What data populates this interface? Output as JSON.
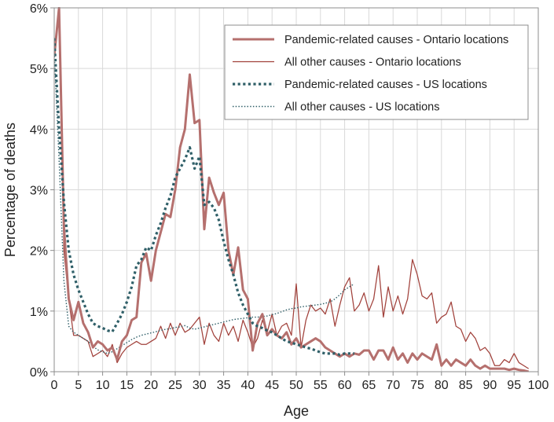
{
  "chart_data": {
    "type": "line",
    "title": "",
    "xlabel": "Age",
    "ylabel": "Percentage of deaths",
    "xlim": [
      0,
      100
    ],
    "ylim": [
      0,
      6
    ],
    "x_ticks": [
      0,
      5,
      10,
      15,
      20,
      25,
      30,
      35,
      40,
      45,
      50,
      55,
      60,
      65,
      70,
      75,
      80,
      85,
      90,
      95,
      100
    ],
    "x_tick_labels": [
      "0",
      "5",
      "10",
      "15",
      "20",
      "25",
      "30",
      "35",
      "40",
      "45",
      "50",
      "55",
      "60",
      "65",
      "70",
      "75",
      "80",
      "85",
      "90",
      "95",
      "100"
    ],
    "y_ticks": [
      0,
      1,
      2,
      3,
      4,
      5,
      6
    ],
    "y_tick_labels": [
      "0%",
      "1%",
      "2%",
      "3%",
      "4%",
      "5%",
      "6%"
    ],
    "grid": true,
    "legend_position": "top-right",
    "colors": {
      "ontario": "#b5706e",
      "ontario_thin": "#a1413b",
      "us": "#2f5f68"
    },
    "series": [
      {
        "name": "Pandemic-related causes - Ontario locations",
        "style": "solid-thick",
        "color": "#b5706e",
        "x": [
          0,
          1,
          2,
          3,
          4,
          5,
          6,
          7,
          8,
          9,
          10,
          11,
          12,
          13,
          14,
          15,
          16,
          17,
          18,
          19,
          20,
          21,
          22,
          23,
          24,
          25,
          26,
          27,
          28,
          29,
          30,
          31,
          32,
          33,
          34,
          35,
          36,
          37,
          38,
          39,
          40,
          41,
          42,
          43,
          44,
          45,
          46,
          47,
          48,
          49,
          50,
          51,
          52,
          53,
          54,
          55,
          56,
          57,
          58,
          59,
          60,
          61,
          62,
          63,
          64,
          65,
          66,
          67,
          68,
          69,
          70,
          71,
          72,
          73,
          74,
          75,
          76,
          77,
          78,
          79,
          80,
          81,
          82,
          83,
          84,
          85,
          86,
          87,
          88,
          89,
          90,
          91,
          92,
          93,
          94,
          95,
          96,
          97,
          98
        ],
        "values": [
          5.2,
          6.0,
          2.4,
          1.2,
          0.85,
          1.15,
          0.8,
          0.65,
          0.4,
          0.5,
          0.45,
          0.35,
          0.4,
          0.2,
          0.5,
          0.6,
          0.85,
          0.9,
          1.8,
          1.95,
          1.5,
          2.0,
          2.3,
          2.6,
          2.55,
          3.0,
          3.7,
          4.0,
          4.9,
          4.1,
          4.15,
          2.35,
          3.2,
          2.95,
          2.75,
          2.95,
          2.0,
          1.6,
          2.05,
          1.35,
          1.2,
          0.35,
          0.8,
          0.95,
          0.6,
          0.7,
          0.6,
          0.55,
          0.65,
          0.45,
          0.55,
          0.4,
          0.45,
          0.5,
          0.55,
          0.5,
          0.4,
          0.35,
          0.3,
          0.25,
          0.3,
          0.25,
          0.3,
          0.28,
          0.35,
          0.35,
          0.2,
          0.35,
          0.35,
          0.2,
          0.4,
          0.2,
          0.3,
          0.15,
          0.3,
          0.2,
          0.3,
          0.25,
          0.2,
          0.45,
          0.1,
          0.2,
          0.1,
          0.2,
          0.15,
          0.1,
          0.2,
          0.1,
          0.05,
          0.1,
          0.05,
          0.05,
          0.05,
          0.05,
          0.03,
          0.05,
          0.03,
          0.02,
          0.0
        ]
      },
      {
        "name": "All other causes - Ontario locations",
        "style": "solid-thin",
        "color": "#a1413b",
        "x": [
          0,
          1,
          2,
          3,
          4,
          5,
          6,
          7,
          8,
          9,
          10,
          11,
          12,
          13,
          14,
          15,
          16,
          17,
          18,
          19,
          20,
          21,
          22,
          23,
          24,
          25,
          26,
          27,
          28,
          29,
          30,
          31,
          32,
          33,
          34,
          35,
          36,
          37,
          38,
          39,
          40,
          41,
          42,
          43,
          44,
          45,
          46,
          47,
          48,
          49,
          50,
          51,
          52,
          53,
          54,
          55,
          56,
          57,
          58,
          59,
          60,
          61,
          62,
          63,
          64,
          65,
          66,
          67,
          68,
          69,
          70,
          71,
          72,
          73,
          74,
          75,
          76,
          77,
          78,
          79,
          80,
          81,
          82,
          83,
          84,
          85,
          86,
          87,
          88,
          89,
          90,
          91,
          92,
          93,
          94,
          95,
          96,
          97,
          98
        ],
        "values": [
          5.2,
          6.0,
          2.0,
          1.2,
          0.6,
          0.6,
          0.55,
          0.5,
          0.25,
          0.3,
          0.35,
          0.25,
          0.45,
          0.15,
          0.3,
          0.4,
          0.45,
          0.5,
          0.45,
          0.45,
          0.5,
          0.55,
          0.75,
          0.55,
          0.8,
          0.6,
          0.8,
          0.65,
          0.7,
          0.8,
          0.9,
          0.45,
          0.8,
          0.6,
          0.5,
          0.8,
          0.6,
          0.75,
          0.5,
          0.85,
          0.65,
          0.4,
          0.55,
          0.85,
          0.65,
          0.95,
          0.6,
          0.75,
          0.8,
          0.6,
          1.45,
          0.4,
          0.85,
          1.1,
          1.0,
          1.05,
          0.95,
          1.2,
          0.75,
          1.1,
          1.4,
          1.55,
          1.0,
          1.1,
          1.3,
          1.0,
          1.2,
          1.75,
          0.9,
          1.4,
          1.0,
          1.25,
          0.95,
          1.2,
          1.85,
          1.6,
          1.25,
          1.2,
          1.3,
          0.8,
          0.9,
          0.95,
          1.15,
          0.75,
          0.7,
          0.5,
          0.65,
          0.55,
          0.35,
          0.4,
          0.3,
          0.1,
          0.1,
          0.2,
          0.15,
          0.3,
          0.15,
          0.1,
          0.05
        ]
      },
      {
        "name": "Pandemic-related causes - US locations",
        "style": "dotted-thick",
        "color": "#2f5f68",
        "x": [
          0,
          1,
          2,
          3,
          4,
          5,
          6,
          7,
          8,
          9,
          10,
          11,
          12,
          13,
          14,
          15,
          16,
          17,
          18,
          19,
          20,
          21,
          22,
          23,
          24,
          25,
          26,
          27,
          28,
          29,
          30,
          31,
          32,
          33,
          34,
          35,
          36,
          37,
          38,
          39,
          40,
          41,
          42,
          43,
          44,
          45,
          46,
          47,
          48,
          49,
          50,
          51,
          52,
          53,
          54,
          55,
          56,
          57,
          58,
          59,
          60,
          61,
          62
        ],
        "values": [
          5.5,
          4.0,
          2.8,
          2.0,
          1.6,
          1.35,
          1.15,
          0.95,
          0.8,
          0.75,
          0.72,
          0.68,
          0.66,
          0.8,
          0.95,
          1.15,
          1.4,
          1.75,
          1.85,
          2.05,
          2.0,
          2.25,
          2.45,
          2.7,
          2.9,
          3.2,
          3.35,
          3.5,
          3.7,
          3.35,
          3.55,
          2.75,
          2.8,
          2.7,
          2.5,
          2.15,
          1.85,
          1.6,
          1.3,
          1.1,
          0.95,
          0.8,
          0.75,
          0.72,
          0.68,
          0.65,
          0.6,
          0.55,
          0.5,
          0.48,
          0.45,
          0.43,
          0.4,
          0.38,
          0.35,
          0.32,
          0.3,
          0.3,
          0.3,
          0.28,
          0.3,
          0.3,
          0.3
        ]
      },
      {
        "name": "All other causes - US locations",
        "style": "dotted-thin",
        "color": "#2f5f68",
        "x": [
          0,
          1,
          2,
          3,
          4,
          5,
          6,
          7,
          8,
          9,
          10,
          11,
          12,
          13,
          14,
          15,
          16,
          17,
          18,
          19,
          20,
          21,
          22,
          23,
          24,
          25,
          26,
          27,
          28,
          29,
          30,
          31,
          32,
          33,
          34,
          35,
          36,
          37,
          38,
          39,
          40,
          41,
          42,
          43,
          44,
          45,
          46,
          47,
          48,
          49,
          50,
          51,
          52,
          53,
          54,
          55,
          56,
          57,
          58,
          59,
          60,
          61,
          62
        ],
        "values": [
          5.3,
          3.5,
          1.5,
          0.75,
          0.65,
          0.6,
          0.55,
          0.5,
          0.42,
          0.36,
          0.33,
          0.3,
          0.33,
          0.38,
          0.43,
          0.48,
          0.53,
          0.57,
          0.6,
          0.62,
          0.64,
          0.66,
          0.68,
          0.7,
          0.71,
          0.73,
          0.74,
          0.76,
          0.72,
          0.7,
          0.72,
          0.74,
          0.76,
          0.78,
          0.8,
          0.82,
          0.84,
          0.86,
          0.87,
          0.88,
          0.89,
          0.9,
          0.9,
          0.91,
          0.92,
          0.94,
          0.96,
          0.99,
          1.02,
          1.04,
          1.05,
          1.07,
          1.08,
          1.09,
          1.1,
          1.11,
          1.13,
          1.15,
          1.2,
          1.27,
          1.35,
          1.4,
          1.45
        ]
      }
    ]
  }
}
